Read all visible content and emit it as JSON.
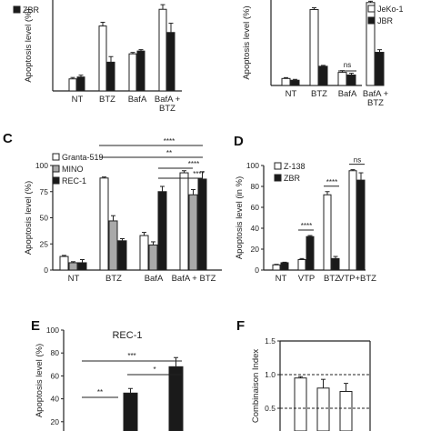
{
  "colors": {
    "white": "#ffffff",
    "gray": "#a9a9a9",
    "black": "#1a1a1a",
    "stroke": "#222222"
  },
  "chart_data": [
    {
      "id": "A",
      "type": "bar",
      "letter": "",
      "ylabel": "Apoptosis level (%)",
      "ylim": [
        0,
        100
      ],
      "yticks": [],
      "categories": [
        "NT",
        "BTZ",
        "BafA",
        "BafA +\nBTZ"
      ],
      "legend": [
        "ZBR"
      ],
      "series": [
        {
          "name": "",
          "color": "#ffffff",
          "values": [
            13,
            70,
            40,
            88
          ],
          "errors": [
            1.5,
            4,
            1.5,
            5
          ]
        },
        {
          "name": "ZBR",
          "color": "#1a1a1a",
          "values": [
            15,
            31,
            43,
            63
          ],
          "errors": [
            2,
            6,
            1.5,
            10
          ]
        }
      ],
      "sig": []
    },
    {
      "id": "B",
      "type": "bar",
      "letter": "",
      "ylabel": "Apoptosis level (%)",
      "ylim": [
        0,
        100
      ],
      "yticks": [],
      "categories": [
        "NT",
        "BTZ",
        "BafA",
        "BafA +\nBTZ"
      ],
      "legend": [
        "JeKo-1",
        "JBR"
      ],
      "series": [
        {
          "name": "JeKo-1",
          "color": "#ffffff",
          "values": [
            8,
            87,
            15,
            95
          ],
          "errors": [
            1,
            2,
            2,
            1.5
          ]
        },
        {
          "name": "JBR",
          "color": "#1a1a1a",
          "values": [
            6,
            22,
            12,
            38
          ],
          "errors": [
            1,
            1,
            2,
            3
          ]
        }
      ],
      "sig": [
        {
          "text": "ns",
          "group": 2
        }
      ]
    },
    {
      "id": "C",
      "type": "bar",
      "letter": "C",
      "ylabel": "Apoptosis level (%)",
      "ylim": [
        0,
        100
      ],
      "yticks": [
        0,
        25,
        50,
        75,
        100
      ],
      "categories": [
        "NT",
        "BTZ",
        "BafA",
        "BafA + BTZ"
      ],
      "legend": [
        "Granta-519",
        "MINO",
        "REC-1"
      ],
      "series": [
        {
          "name": "Granta-519",
          "color": "#ffffff",
          "values": [
            13,
            88,
            33,
            93
          ],
          "errors": [
            1,
            1,
            3,
            2
          ]
        },
        {
          "name": "MINO",
          "color": "#a9a9a9",
          "values": [
            7,
            47,
            24,
            72
          ],
          "errors": [
            1,
            5,
            3,
            5
          ]
        },
        {
          "name": "REC-1",
          "color": "#1a1a1a",
          "values": [
            7,
            28,
            75,
            87
          ],
          "errors": [
            3,
            2,
            5,
            7
          ]
        }
      ],
      "sig": [
        {
          "text": "****"
        },
        {
          "text": "**"
        },
        {
          "text": "****"
        },
        {
          "text": "****"
        }
      ]
    },
    {
      "id": "D",
      "type": "bar",
      "letter": "D",
      "ylabel": "Apoptosis level (in %)",
      "ylim": [
        0,
        100
      ],
      "yticks": [
        0,
        20,
        40,
        60,
        80,
        100
      ],
      "categories": [
        "NT",
        "VTP",
        "BTZ",
        "VTP+BTZ"
      ],
      "legend": [
        "Z-138",
        "ZBR"
      ],
      "series": [
        {
          "name": "Z-138",
          "color": "#ffffff",
          "values": [
            5,
            10,
            72,
            95
          ],
          "errors": [
            0.5,
            1,
            3,
            1
          ]
        },
        {
          "name": "ZBR",
          "color": "#1a1a1a",
          "values": [
            7,
            32,
            11,
            86
          ],
          "errors": [
            0.5,
            1,
            2,
            7
          ]
        }
      ],
      "sig": [
        {
          "text": "****",
          "group": 1
        },
        {
          "text": "****",
          "group": 2
        },
        {
          "text": "ns",
          "group": 3
        }
      ]
    },
    {
      "id": "E",
      "type": "bar",
      "letter": "E",
      "title": "REC-1",
      "ylabel": "Apoptosis level (%)",
      "ylim": [
        0,
        100
      ],
      "yticks": [
        0,
        20,
        40,
        60,
        80,
        100
      ],
      "categories": [
        "",
        "",
        ""
      ],
      "series": [
        {
          "name": "",
          "color": "#1a1a1a",
          "values": [
            5,
            45,
            68
          ],
          "errors": [
            1,
            4,
            8
          ]
        }
      ],
      "sig": [
        {
          "text": "**"
        },
        {
          "text": "***"
        },
        {
          "text": "*"
        }
      ]
    },
    {
      "id": "F",
      "type": "bar",
      "letter": "F",
      "ylabel": "Combinaison Index",
      "ylim": [
        0,
        1.5
      ],
      "yticks": [
        0.5,
        1.0,
        1.5
      ],
      "categories": [
        "",
        "",
        ""
      ],
      "series": [
        {
          "name": "",
          "color": "#ffffff",
          "values": [
            0.95,
            0.8,
            0.75
          ],
          "errors": [
            0.02,
            0.13,
            0.12
          ]
        }
      ],
      "refs": [
        1.0,
        0.5
      ]
    }
  ]
}
